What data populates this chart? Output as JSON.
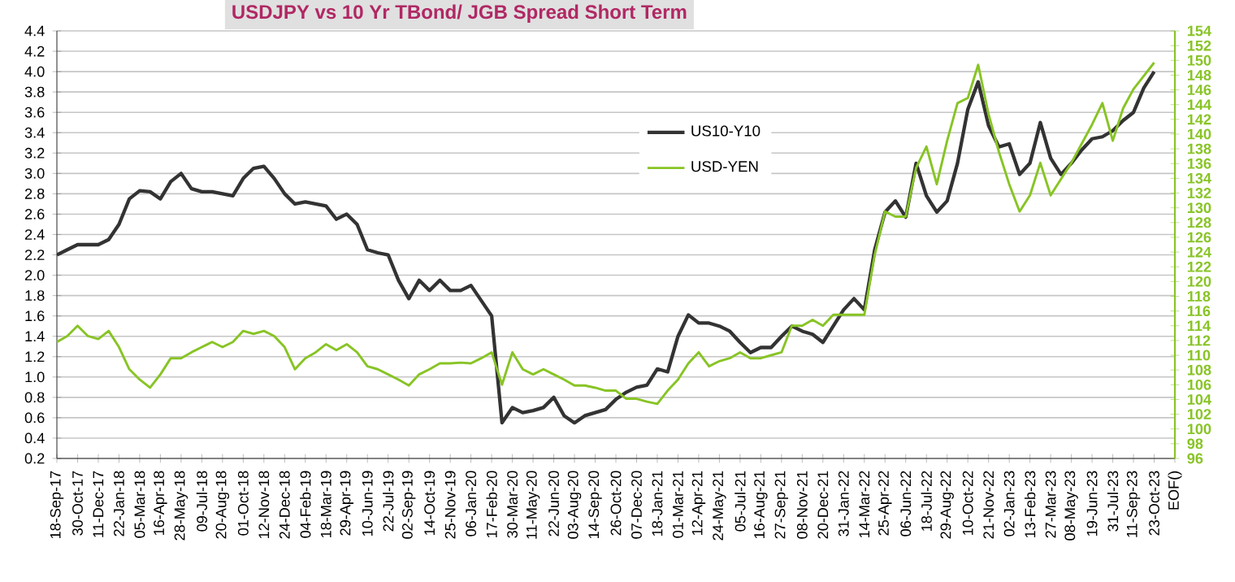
{
  "chart_data": {
    "type": "line",
    "title": "USDJPY vs 10 Yr TBond/ JGB Spread Short Term",
    "categories": [
      "18-Sep-17",
      null,
      "30-Oct-17",
      null,
      "11-Dec-17",
      null,
      "22-Jan-18",
      null,
      "05-Mar-18",
      null,
      "16-Apr-18",
      null,
      "28-May-18",
      null,
      "09-Jul-18",
      null,
      "20-Aug-18",
      null,
      "01-Oct-18",
      null,
      "12-Nov-18",
      null,
      "24-Dec-18",
      null,
      "04-Feb-19",
      null,
      "18-Mar-19",
      null,
      "29-Apr-19",
      null,
      "10-Jun-19",
      null,
      "22-Jul-19",
      null,
      "02-Sep-19",
      null,
      "14-Oct-19",
      null,
      "25-Nov-19",
      null,
      "06-Jan-20",
      null,
      "17-Feb-20",
      null,
      "30-Mar-20",
      null,
      "11-May-20",
      null,
      "22-Jun-20",
      null,
      "03-Aug-20",
      null,
      "14-Sep-20",
      null,
      "26-Oct-20",
      null,
      "07-Dec-20",
      null,
      "18-Jan-21",
      null,
      "01-Mar-21",
      null,
      "12-Apr-21",
      null,
      "24-May-21",
      null,
      "05-Jul-21",
      null,
      "16-Aug-21",
      null,
      "27-Sep-21",
      null,
      "08-Nov-21",
      null,
      "20-Dec-21",
      null,
      "31-Jan-22",
      null,
      "14-Mar-22",
      null,
      "25-Apr-22",
      null,
      "06-Jun-22",
      null,
      "18-Jul-22",
      null,
      "29-Aug-22",
      null,
      "10-Oct-22",
      null,
      "21-Nov-22",
      null,
      "02-Jan-23",
      null,
      "13-Feb-23",
      null,
      "27-Mar-23",
      null,
      "08-May-23",
      null,
      "19-Jun-23",
      null,
      "31-Jul-23",
      null,
      "11-Sep-23",
      null,
      "23-Oct-23",
      null,
      "EOF()"
    ],
    "series": [
      {
        "name": "US10-Y10",
        "color": "#333333",
        "values": [
          2.2,
          2.25,
          2.3,
          2.3,
          2.3,
          2.35,
          2.5,
          2.75,
          2.83,
          2.82,
          2.75,
          2.92,
          3.0,
          2.85,
          2.82,
          2.82,
          2.8,
          2.78,
          2.95,
          3.05,
          3.07,
          2.95,
          2.8,
          2.7,
          2.72,
          2.7,
          2.68,
          2.55,
          2.6,
          2.5,
          2.25,
          2.22,
          2.2,
          1.95,
          1.77,
          1.95,
          1.85,
          1.95,
          1.85,
          1.85,
          1.9,
          1.75,
          1.6,
          0.55,
          0.7,
          0.65,
          0.67,
          0.7,
          0.8,
          0.62,
          0.55,
          0.62,
          0.65,
          0.68,
          0.78,
          0.85,
          0.9,
          0.92,
          1.08,
          1.05,
          1.4,
          1.61,
          1.53,
          1.53,
          1.5,
          1.45,
          1.34,
          1.24,
          1.29,
          1.29,
          1.4,
          1.5,
          1.45,
          1.42,
          1.34,
          1.5,
          1.66,
          1.77,
          1.66,
          2.25,
          2.62,
          2.73,
          2.57,
          3.1,
          2.78,
          2.62,
          2.73,
          3.1,
          3.63,
          3.9,
          3.47,
          3.26,
          3.29,
          2.99,
          3.1,
          3.5,
          3.15,
          2.99,
          3.1,
          3.23,
          3.34,
          3.36,
          3.42,
          3.52,
          3.6,
          3.84,
          4.0,
          null,
          null
        ]
      },
      {
        "name": "USD-YEN",
        "color": "#88c425",
        "axis": "y2",
        "values": [
          111.8,
          112.6,
          114.0,
          112.6,
          112.2,
          113.3,
          111.1,
          108.1,
          106.7,
          105.6,
          107.4,
          109.6,
          109.6,
          110.4,
          111.1,
          111.8,
          111.1,
          111.8,
          113.3,
          112.9,
          113.3,
          112.6,
          111.1,
          108.1,
          109.6,
          110.4,
          111.5,
          110.7,
          111.5,
          110.4,
          108.5,
          108.1,
          107.4,
          106.7,
          105.9,
          107.4,
          108.1,
          108.9,
          108.9,
          109.0,
          108.9,
          109.6,
          110.4,
          106.0,
          110.4,
          108.1,
          107.4,
          108.1,
          107.4,
          106.7,
          105.9,
          105.9,
          105.6,
          105.2,
          105.2,
          104.1,
          104.1,
          103.7,
          103.4,
          105.2,
          106.7,
          108.9,
          110.4,
          108.5,
          109.2,
          109.6,
          110.4,
          109.6,
          109.6,
          110.0,
          110.4,
          114.0,
          114.0,
          114.8,
          114.0,
          115.5,
          115.5,
          115.5,
          115.5,
          123.6,
          129.5,
          128.8,
          128.8,
          135.4,
          138.3,
          133.2,
          139.1,
          144.2,
          144.9,
          149.4,
          142.7,
          137.6,
          133.2,
          129.5,
          131.7,
          136.1,
          131.7,
          133.9,
          136.1,
          138.7,
          141.3,
          144.2,
          139.1,
          143.5,
          146.1,
          147.9,
          149.7,
          null,
          null
        ]
      }
    ],
    "ylim": [
      0.2,
      4.4
    ],
    "yticks": [
      0.2,
      0.4,
      0.6,
      0.8,
      {
        "value": 1,
        "label": "1.0"
      },
      1.2,
      1.4,
      1.6,
      1.8,
      {
        "value": 2,
        "label": "2.0"
      },
      2.2,
      2.4,
      2.6,
      2.8,
      {
        "value": 3,
        "label": "3.0"
      },
      3.2,
      3.4,
      3.6,
      3.8,
      {
        "value": 4,
        "label": "4.0"
      },
      4.2,
      4.4
    ],
    "y2lim": [
      96,
      154
    ],
    "y2ticks": [
      96,
      98,
      100,
      102,
      104,
      106,
      108,
      110,
      112,
      114,
      116,
      118,
      120,
      122,
      124,
      126,
      128,
      130,
      132,
      134,
      136,
      138,
      140,
      142,
      144,
      146,
      148,
      150,
      152,
      154
    ],
    "grid": "y",
    "legend": "top",
    "line_style": "solid",
    "marker": "none"
  }
}
